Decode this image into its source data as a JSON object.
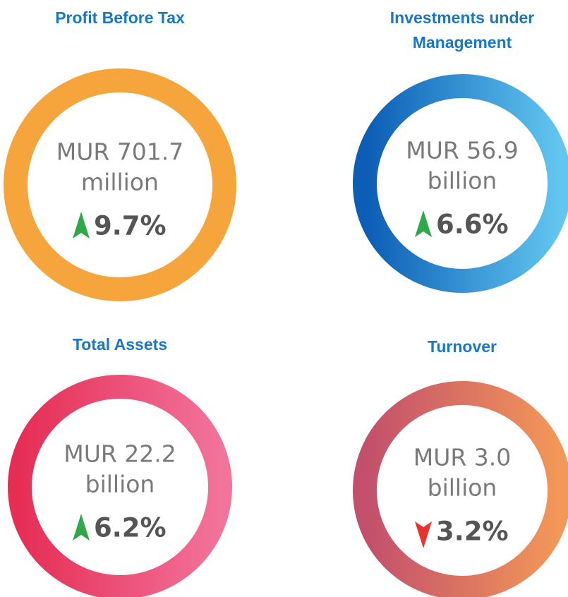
{
  "cards": [
    {
      "title_lines": [
        "Profit Before Tax"
      ],
      "amount": "MUR 701.7",
      "unit": "million",
      "change": "9.7%",
      "trend": "up",
      "ring_colors": [
        "#f5a53c",
        "#f5a53c"
      ]
    },
    {
      "title_lines": [
        "Investments under",
        "Management"
      ],
      "amount": "MUR 56.9",
      "unit": "billion",
      "change": "6.6%",
      "trend": "up",
      "ring_colors": [
        "#0b5db5",
        "#62c6f0"
      ]
    },
    {
      "title_lines": [
        "Total Assets"
      ],
      "amount": "MUR 22.2",
      "unit": "billion",
      "change": "6.2%",
      "trend": "up",
      "ring_colors": [
        "#e62e55",
        "#f2739b"
      ]
    },
    {
      "title_lines": [
        "Turnover"
      ],
      "amount": "MUR 3.0",
      "unit": "billion",
      "change": "3.2%",
      "trend": "down",
      "ring_colors": [
        "#c24f6c",
        "#f39858"
      ]
    }
  ]
}
